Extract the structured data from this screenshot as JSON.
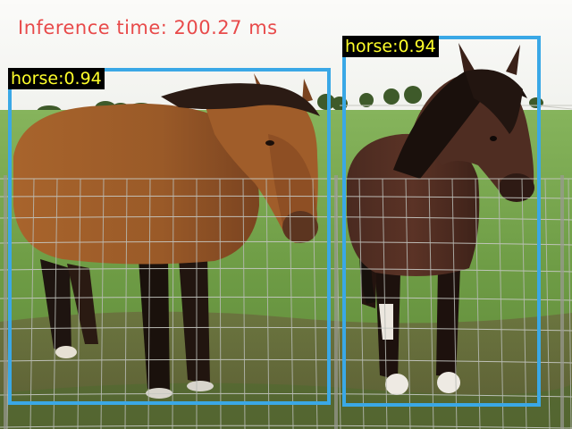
{
  "overlay": {
    "inference_text": "Inference time: 200.27 ms",
    "box_color": "#3aa8e6",
    "label_text_color": "#ffff2a",
    "inference_text_color": "#e84a4a"
  },
  "detections": [
    {
      "class": "horse",
      "score": "0.94",
      "label": "horse:0.94"
    },
    {
      "class": "horse",
      "score": "0.94",
      "label": "horse:0.94"
    }
  ]
}
